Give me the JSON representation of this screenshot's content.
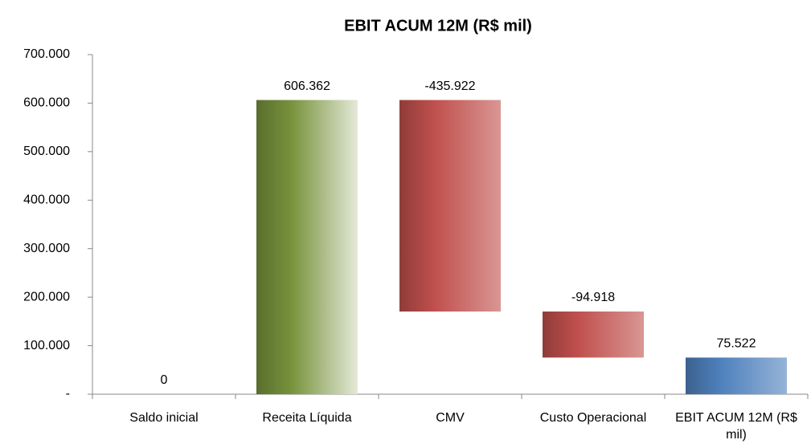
{
  "chart_data": {
    "type": "waterfall",
    "title": "EBIT ACUM 12M (R$ mil)",
    "categories": [
      "Saldo inicial",
      "Receita Líquida",
      "CMV",
      "Custo Operacional",
      "EBIT ACUM 12M (R$ mil)"
    ],
    "values": [
      0,
      606362,
      -435922,
      -94918,
      75522
    ],
    "value_labels": [
      "0",
      "606.362",
      "-435.922",
      "-94.918",
      "75.522"
    ],
    "measure": [
      "absolute",
      "relative",
      "relative",
      "relative",
      "total"
    ],
    "increase_color": "#77933c",
    "decrease_color": "#c0504d",
    "total_color": "#4f81bd",
    "ylim": [
      0,
      700000
    ],
    "yticks": [
      {
        "value": 0,
        "label": "-"
      },
      {
        "value": 100000,
        "label": "100.000"
      },
      {
        "value": 200000,
        "label": "200.000"
      },
      {
        "value": 300000,
        "label": "300.000"
      },
      {
        "value": 400000,
        "label": "400.000"
      },
      {
        "value": 500000,
        "label": "500.000"
      },
      {
        "value": 600000,
        "label": "600.000"
      },
      {
        "value": 700000,
        "label": "700.000"
      }
    ]
  }
}
